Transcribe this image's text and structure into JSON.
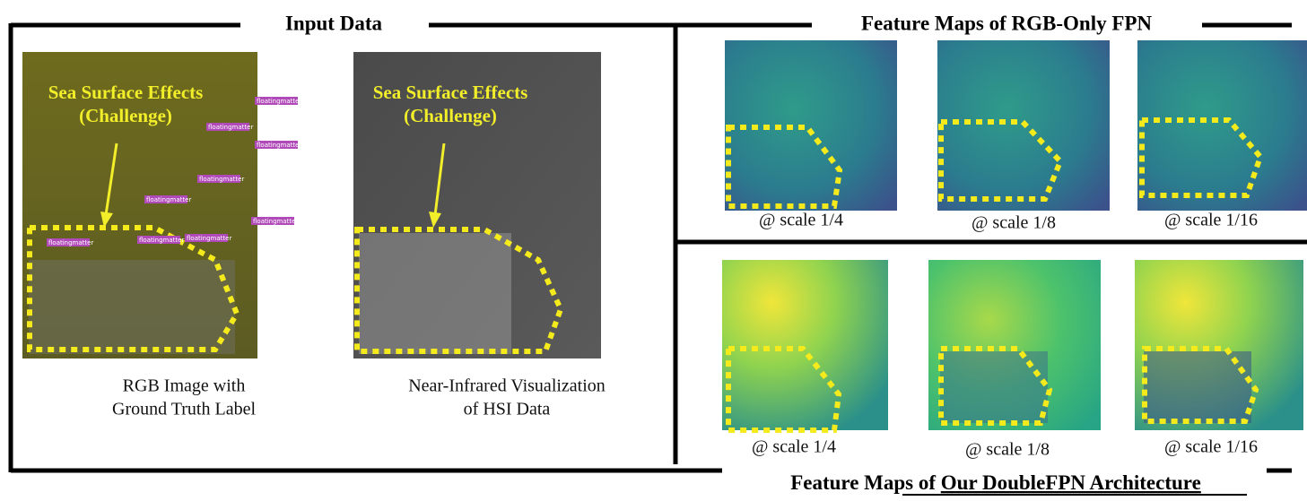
{
  "input_data": {
    "title": "Input Data",
    "annotation": [
      "Sea Surface Effects",
      "(Challenge)"
    ],
    "labels": [
      "floatingmatter",
      "floatingmatter",
      "floatingmatter",
      "floatingmatter",
      "floatingmatter",
      "floatingmatter",
      "floatingmatter",
      "floatingmatter",
      "floatingmatter"
    ],
    "rgb_caption": [
      "RGB Image with",
      "Ground Truth Label"
    ],
    "nir_caption": [
      "Near-Infrared Visualization",
      "of HSI Data"
    ]
  },
  "rgb_only_fpn": {
    "title": "Feature Maps of RGB-Only FPN",
    "captions": [
      "@ scale 1/4",
      "@ scale 1/8",
      "@ scale 1/16"
    ]
  },
  "double_fpn": {
    "title_prefix": "Feature Maps of",
    "title_emphasis": "Our DoubleFPN Architecture",
    "captions": [
      "@ scale 1/4",
      "@ scale 1/8",
      "@ scale 1/16"
    ]
  }
}
